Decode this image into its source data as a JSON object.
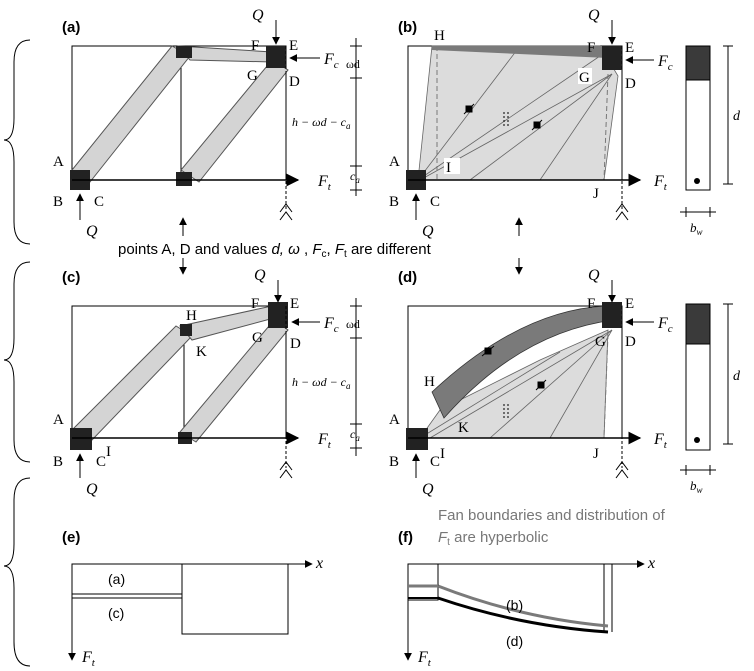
{
  "panels": {
    "a": "(a)",
    "b": "(b)",
    "c": "(c)",
    "d": "(d)",
    "e": "(e)",
    "f": "(f)"
  },
  "points": {
    "A": "A",
    "B": "B",
    "C": "C",
    "D": "D",
    "E": "E",
    "F": "F",
    "G": "G",
    "H": "H",
    "I": "I",
    "J": "J",
    "K": "K"
  },
  "forces": {
    "Q": "Q",
    "F": "F",
    "c_sub": "c",
    "t_sub": "t",
    "x": "x"
  },
  "dims": {
    "omega_d": "ωd",
    "lever": "h − ωd − c",
    "lever_sub": "a",
    "c": "c",
    "c_sub": "a",
    "d": "d",
    "b": "b",
    "b_sub": "w"
  },
  "notes": {
    "middle_pre": "points A, D and values ",
    "middle_d": "d, ",
    "middle_omega": "ω",
    "middle_comma": " , ",
    "middle_F": "F",
    "middle_c": "c",
    "middle_comma2": ", ",
    "middle_F2": "F",
    "middle_t": "t",
    "middle_post": " are different",
    "fan_line1": "Fan boundaries and distribution of",
    "fan_F": "F",
    "fan_t": "t",
    "fan_post": " are hyperbolic"
  },
  "graph_labels": {
    "e_a": "(a)",
    "e_c": "(c)",
    "f_b": "(b)",
    "f_d": "(d)"
  },
  "colors": {
    "strut_fill": "#d4d4d4",
    "fan_fill": "#dcdcdc",
    "compression_dark": "#7a7a7a",
    "node": "#222222",
    "note_grey": "#777777"
  }
}
